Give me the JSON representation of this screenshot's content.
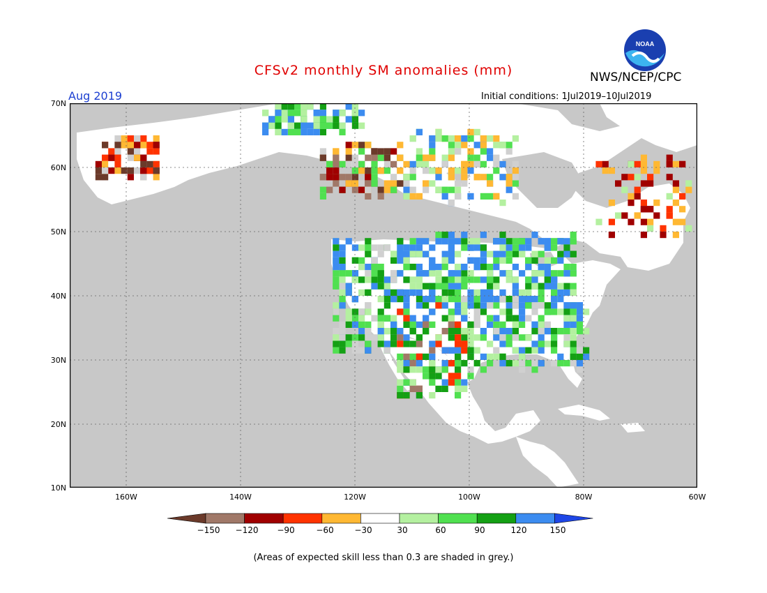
{
  "title": "CFSv2 monthly SM anomalies (mm)",
  "valid_month": "Aug 2019",
  "initial_conditions": "Initial conditions: 1Jul2019–10Jul2019",
  "agency": "NWS/NCEP/CPC",
  "logo_text": "NOAA",
  "map": {
    "lat_labels": [
      "70N",
      "60N",
      "50N",
      "40N",
      "30N",
      "20N",
      "10N"
    ],
    "lon_labels": [
      "160W",
      "140W",
      "120W",
      "100W",
      "80W",
      "60W"
    ],
    "lon_range": [
      -172,
      -60
    ],
    "lat_range": [
      10,
      70
    ],
    "ocean_color": "#c8c8c8",
    "land_color": "#ffffff"
  },
  "colorbar": {
    "labels": [
      "−150",
      "−120",
      "−90",
      "−60",
      "−30",
      "30",
      "60",
      "90",
      "120",
      "150"
    ],
    "colors": [
      "#6b3a2a",
      "#a07868",
      "#a00000",
      "#ff3300",
      "#ffb833",
      "#ffffff",
      "#b4f0a0",
      "#50e050",
      "#14a014",
      "#3c8cf0",
      "#1e46e6"
    ]
  },
  "footnote": "(Areas of expected skill less than 0.3 are shaded in grey.)"
}
